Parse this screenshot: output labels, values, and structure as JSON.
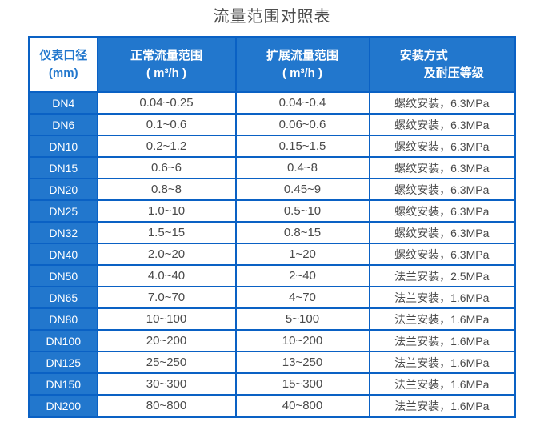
{
  "title": "流量范围对照表",
  "colors": {
    "cell_blue": "#2277cd",
    "border_blue": "#0a61c4",
    "header_text": "#ffffff",
    "body_text": "#4a4a4a"
  },
  "table": {
    "headers": {
      "col1": {
        "line1": "仪表口径",
        "line2": "(mm)"
      },
      "col2": {
        "line1": "正常流量范围",
        "line2": "( m³/h )"
      },
      "col3": {
        "line1": "扩展流量范围",
        "line2": "( m³/h )"
      },
      "col4": {
        "line1": "安装方式",
        "line2": "及耐压等级"
      }
    },
    "rows": [
      {
        "dn": "DN4",
        "normal": "0.04~0.25",
        "extended": "0.04~0.4",
        "install": "螺纹安装，6.3MPa"
      },
      {
        "dn": "DN6",
        "normal": "0.1~0.6",
        "extended": "0.06~0.6",
        "install": "螺纹安装，6.3MPa"
      },
      {
        "dn": "DN10",
        "normal": "0.2~1.2",
        "extended": "0.15~1.5",
        "install": "螺纹安装，6.3MPa"
      },
      {
        "dn": "DN15",
        "normal": "0.6~6",
        "extended": "0.4~8",
        "install": "螺纹安装，6.3MPa"
      },
      {
        "dn": "DN20",
        "normal": "0.8~8",
        "extended": "0.45~9",
        "install": "螺纹安装，6.3MPa"
      },
      {
        "dn": "DN25",
        "normal": "1.0~10",
        "extended": "0.5~10",
        "install": "螺纹安装，6.3MPa"
      },
      {
        "dn": "DN32",
        "normal": "1.5~15",
        "extended": "0.8~15",
        "install": "螺纹安装，6.3MPa"
      },
      {
        "dn": "DN40",
        "normal": "2.0~20",
        "extended": "1~20",
        "install": "螺纹安装，6.3MPa"
      },
      {
        "dn": "DN50",
        "normal": "4.0~40",
        "extended": "2~40",
        "install": "法兰安装，2.5MPa"
      },
      {
        "dn": "DN65",
        "normal": "7.0~70",
        "extended": "4~70",
        "install": "法兰安装，1.6MPa"
      },
      {
        "dn": "DN80",
        "normal": "10~100",
        "extended": "5~100",
        "install": "法兰安装，1.6MPa"
      },
      {
        "dn": "DN100",
        "normal": "20~200",
        "extended": "10~200",
        "install": "法兰安装，1.6MPa"
      },
      {
        "dn": "DN125",
        "normal": "25~250",
        "extended": "13~250",
        "install": "法兰安装，1.6MPa"
      },
      {
        "dn": "DN150",
        "normal": "30~300",
        "extended": "15~300",
        "install": "法兰安装，1.6MPa"
      },
      {
        "dn": "DN200",
        "normal": "80~800",
        "extended": "40~800",
        "install": "法兰安装，1.6MPa"
      }
    ]
  }
}
